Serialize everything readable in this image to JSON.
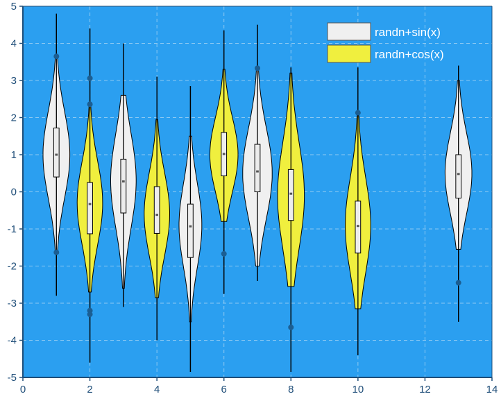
{
  "chart_data": {
    "type": "violin",
    "title": "",
    "xlabel": "",
    "ylabel": "",
    "xlim": [
      0,
      14
    ],
    "ylim": [
      -5,
      5
    ],
    "x_ticks": [
      0,
      2,
      4,
      6,
      8,
      10,
      12,
      14
    ],
    "y_ticks": [
      5,
      4,
      3,
      2,
      1,
      0,
      -1,
      -2,
      -3,
      -4,
      -5
    ],
    "grid": true,
    "legend_position": "top-right",
    "colors": {
      "background": "#2b9ff0",
      "grid": "#8fcaf2",
      "axis": "#1f4e79",
      "outline": "#000000",
      "box_fill": "#ededed",
      "median": "#555555",
      "outlier": "#1b5e93"
    },
    "series": [
      {
        "name": "randn+sin(x)",
        "color": "#f0f0f0",
        "violins": [
          {
            "x": 1,
            "whisker": [
              -2.8,
              4.8
            ],
            "kde_min": -1.6,
            "kde_max": 3.7,
            "half_width": 0.4,
            "peak": 1.0,
            "q1": 0.4,
            "median": 1.0,
            "q3": 1.72,
            "outliers": [
              3.65,
              -1.63
            ]
          },
          {
            "x": 3,
            "whisker": [
              -3.1,
              4.0
            ],
            "kde_min": -2.6,
            "kde_max": 2.6,
            "half_width": 0.38,
            "peak": 0.3,
            "q1": -0.57,
            "median": 0.28,
            "q3": 0.88,
            "outliers": []
          },
          {
            "x": 5,
            "whisker": [
              -4.85,
              2.85
            ],
            "kde_min": -3.5,
            "kde_max": 1.5,
            "half_width": 0.34,
            "peak": -0.9,
            "q1": -1.77,
            "median": -0.93,
            "q3": -0.33,
            "outliers": []
          },
          {
            "x": 7,
            "whisker": [
              -2.4,
              4.5
            ],
            "kde_min": -2.0,
            "kde_max": 3.3,
            "half_width": 0.44,
            "peak": 0.5,
            "q1": 0.0,
            "median": 0.55,
            "q3": 1.28,
            "outliers": [
              3.33
            ]
          },
          {
            "x": 13,
            "whisker": [
              -3.5,
              3.4
            ],
            "kde_min": -1.55,
            "kde_max": 3.0,
            "half_width": 0.4,
            "peak": 0.5,
            "q1": -0.17,
            "median": 0.48,
            "q3": 1.0,
            "outliers": [
              -2.45
            ]
          }
        ]
      },
      {
        "name": "randn+cos(x)",
        "color": "#f0ef3e",
        "violins": [
          {
            "x": 2,
            "whisker": [
              -4.6,
              4.4
            ],
            "kde_min": -2.7,
            "kde_max": 2.3,
            "half_width": 0.38,
            "peak": -0.3,
            "q1": -1.13,
            "median": -0.33,
            "q3": 0.25,
            "outliers": [
              3.06,
              2.36,
              -3.2,
              -3.3
            ]
          },
          {
            "x": 4,
            "whisker": [
              -4.0,
              3.1
            ],
            "kde_min": -2.85,
            "kde_max": 1.95,
            "half_width": 0.38,
            "peak": -0.6,
            "q1": -1.12,
            "median": -0.62,
            "q3": 0.14,
            "outliers": []
          },
          {
            "x": 6,
            "whisker": [
              -2.75,
              4.35
            ],
            "kde_min": -0.8,
            "kde_max": 3.3,
            "half_width": 0.42,
            "peak": 1.0,
            "q1": 0.43,
            "median": 1.02,
            "q3": 1.6,
            "outliers": [
              -1.67
            ]
          },
          {
            "x": 8,
            "whisker": [
              -4.85,
              3.35
            ],
            "kde_min": -2.55,
            "kde_max": 3.2,
            "half_width": 0.4,
            "peak": -0.1,
            "q1": -0.77,
            "median": -0.05,
            "q3": 0.6,
            "outliers": [
              -3.65
            ]
          },
          {
            "x": 10,
            "whisker": [
              -4.4,
              3.35
            ],
            "kde_min": -3.15,
            "kde_max": 2.05,
            "half_width": 0.38,
            "peak": -0.9,
            "q1": -1.65,
            "median": -0.92,
            "q3": -0.25,
            "outliers": [
              2.13
            ]
          }
        ]
      }
    ]
  }
}
